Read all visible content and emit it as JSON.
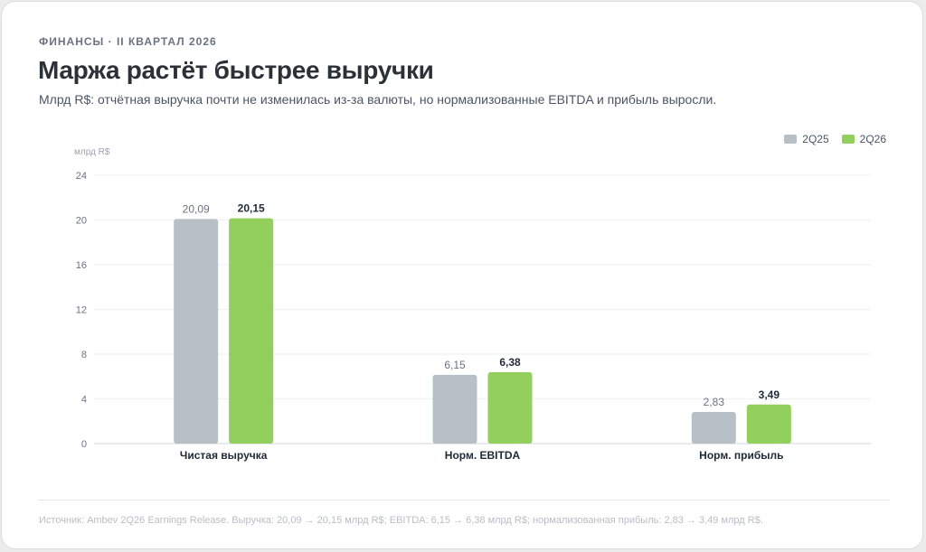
{
  "header": {
    "kicker": "ФИНАНСЫ · II КВАРТАЛ 2026",
    "title": "Маржа растёт быстрее выручки",
    "subtitle": "Млрд R$: отчётная выручка почти не изменилась из-за валюты, но нормализованные EBITDA и прибыль выросли."
  },
  "footer": {
    "source": "Источник: Ambev 2Q26 Earnings Release. Выручка: 20,09 → 20,15 млрд R$; EBITDA: 6,15 → 6,38 млрд R$; нормализованная прибыль: 2,83 → 3,49 млрд R$."
  },
  "chart_data": {
    "type": "bar",
    "ylabel": "млрд R$",
    "ylim": [
      0,
      24
    ],
    "yticks": [
      "0",
      "4",
      "8",
      "12",
      "16",
      "20",
      "24"
    ],
    "grid": true,
    "legend_position": "top-right",
    "categories": [
      "Чистая выручка",
      "Норм. EBITDA",
      "Норм. прибыль"
    ],
    "series": [
      {
        "name": "2Q25",
        "color": "#b7c0c7",
        "values": [
          20.09,
          6.15,
          2.83
        ],
        "labels": [
          "20,09",
          "6,15",
          "2,83"
        ]
      },
      {
        "name": "2Q26",
        "color": "#92cf5c",
        "values": [
          20.15,
          6.38,
          3.49
        ],
        "labels": [
          "20,15",
          "6,38",
          "3,49"
        ]
      }
    ]
  }
}
